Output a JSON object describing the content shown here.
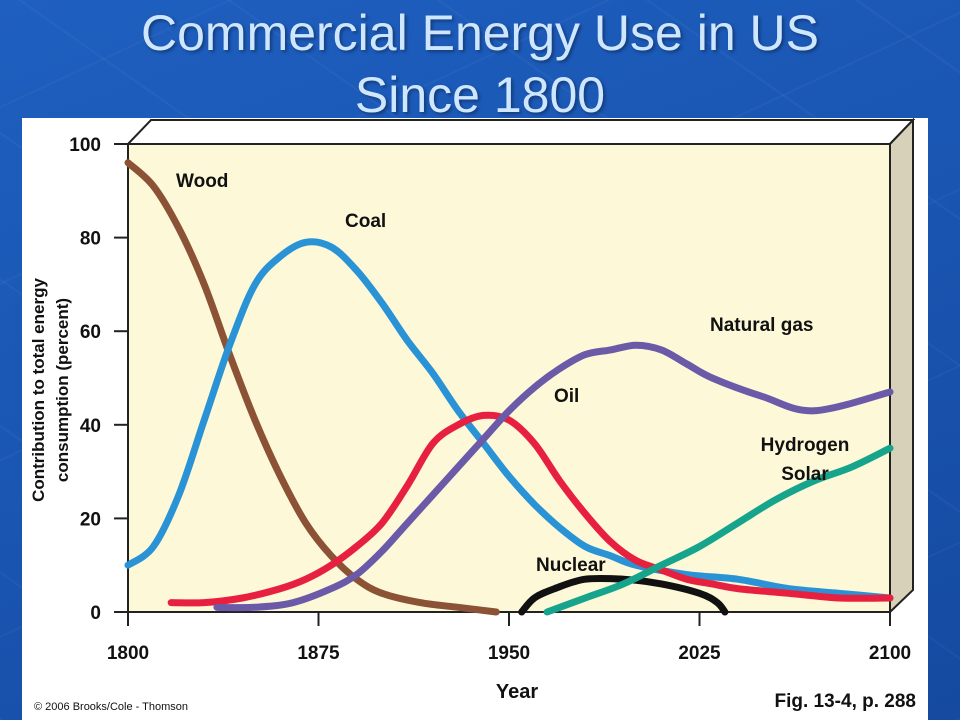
{
  "slide": {
    "title_line1": "Commercial Energy Use in US",
    "title_line2": "Since 1800",
    "copyright": "© 2006 Brooks/Cole - Thomson",
    "figure_ref": "Fig. 13-4, p. 288"
  },
  "colors": {
    "background": "#1a56b3",
    "title": "#cfe6ff",
    "plot_area": "#fcf8d8",
    "wood": "#8b5236",
    "coal": "#2a93d5",
    "oil": "#e8203f",
    "natural_gas": "#6a5aa8",
    "hydrogen_solar": "#16a58c",
    "nuclear": "#111111"
  },
  "chart_data": {
    "type": "line",
    "title": "",
    "xlabel": "Year",
    "ylabel_line1": "Contribution to total energy",
    "ylabel_line2": "consumption (percent)",
    "xlim": [
      1800,
      2100
    ],
    "ylim": [
      0,
      100
    ],
    "x_ticks": [
      "1800",
      "1875",
      "1950",
      "2025",
      "2100"
    ],
    "y_ticks": [
      "0",
      "20",
      "40",
      "60",
      "80",
      "100"
    ],
    "grid": false,
    "legend": "inline labels",
    "series": [
      {
        "name": "Wood",
        "color_key": "wood",
        "points": [
          [
            1800,
            96
          ],
          [
            1810,
            91
          ],
          [
            1820,
            82
          ],
          [
            1830,
            70
          ],
          [
            1840,
            55
          ],
          [
            1850,
            41
          ],
          [
            1860,
            29
          ],
          [
            1870,
            19
          ],
          [
            1880,
            12
          ],
          [
            1890,
            7
          ],
          [
            1900,
            4
          ],
          [
            1915,
            2
          ],
          [
            1930,
            1
          ],
          [
            1945,
            0
          ]
        ]
      },
      {
        "name": "Coal",
        "color_key": "coal",
        "points": [
          [
            1800,
            10
          ],
          [
            1810,
            14
          ],
          [
            1820,
            25
          ],
          [
            1830,
            41
          ],
          [
            1840,
            57
          ],
          [
            1850,
            70
          ],
          [
            1860,
            76
          ],
          [
            1870,
            79
          ],
          [
            1880,
            78
          ],
          [
            1890,
            73
          ],
          [
            1900,
            66
          ],
          [
            1910,
            58
          ],
          [
            1920,
            51
          ],
          [
            1930,
            43
          ],
          [
            1940,
            36
          ],
          [
            1950,
            29
          ],
          [
            1960,
            23
          ],
          [
            1970,
            18
          ],
          [
            1980,
            14
          ],
          [
            1990,
            12
          ],
          [
            2000,
            10
          ],
          [
            2020,
            8
          ],
          [
            2040,
            7
          ],
          [
            2060,
            5
          ],
          [
            2080,
            4
          ],
          [
            2100,
            3
          ]
        ]
      },
      {
        "name": "Oil",
        "color_key": "oil",
        "points": [
          [
            1817,
            2
          ],
          [
            1830,
            2
          ],
          [
            1845,
            3
          ],
          [
            1860,
            5
          ],
          [
            1870,
            7
          ],
          [
            1880,
            10
          ],
          [
            1890,
            14
          ],
          [
            1900,
            19
          ],
          [
            1910,
            27
          ],
          [
            1920,
            36
          ],
          [
            1930,
            40
          ],
          [
            1940,
            42
          ],
          [
            1950,
            41
          ],
          [
            1960,
            36
          ],
          [
            1970,
            28
          ],
          [
            1980,
            21
          ],
          [
            1990,
            15
          ],
          [
            2000,
            11
          ],
          [
            2010,
            9
          ],
          [
            2020,
            7
          ],
          [
            2030,
            6
          ],
          [
            2040,
            5
          ],
          [
            2060,
            4
          ],
          [
            2080,
            3
          ],
          [
            2100,
            3
          ]
        ]
      },
      {
        "name": "Natural gas",
        "color_key": "natural_gas",
        "points": [
          [
            1835,
            1
          ],
          [
            1850,
            1
          ],
          [
            1865,
            2
          ],
          [
            1880,
            5
          ],
          [
            1890,
            8
          ],
          [
            1900,
            13
          ],
          [
            1910,
            19
          ],
          [
            1920,
            25
          ],
          [
            1930,
            31
          ],
          [
            1940,
            37
          ],
          [
            1950,
            43
          ],
          [
            1960,
            48
          ],
          [
            1970,
            52
          ],
          [
            1980,
            55
          ],
          [
            1990,
            56
          ],
          [
            2000,
            57
          ],
          [
            2010,
            56
          ],
          [
            2020,
            53
          ],
          [
            2030,
            50
          ],
          [
            2050,
            46
          ],
          [
            2070,
            43
          ],
          [
            2100,
            47
          ]
        ]
      },
      {
        "name": "Nuclear",
        "color_key": "nuclear",
        "points": [
          [
            1955,
            0
          ],
          [
            1960,
            3
          ],
          [
            1968,
            5
          ],
          [
            1980,
            7
          ],
          [
            1995,
            7
          ],
          [
            2010,
            6
          ],
          [
            2025,
            4
          ],
          [
            2032,
            2
          ],
          [
            2035,
            0
          ]
        ]
      },
      {
        "name_line1": "Hydrogen",
        "name_line2": "Solar",
        "color_key": "hydrogen_solar",
        "points": [
          [
            1965,
            0
          ],
          [
            1980,
            3
          ],
          [
            1995,
            6
          ],
          [
            2010,
            10
          ],
          [
            2025,
            14
          ],
          [
            2040,
            19
          ],
          [
            2055,
            24
          ],
          [
            2070,
            28
          ],
          [
            2085,
            31
          ],
          [
            2100,
            35
          ]
        ]
      }
    ],
    "labels": {
      "wood": "Wood",
      "coal": "Coal",
      "oil": "Oil",
      "natural_gas": "Natural gas",
      "nuclear": "Nuclear",
      "hydrogen": "Hydrogen",
      "solar": "Solar"
    }
  }
}
